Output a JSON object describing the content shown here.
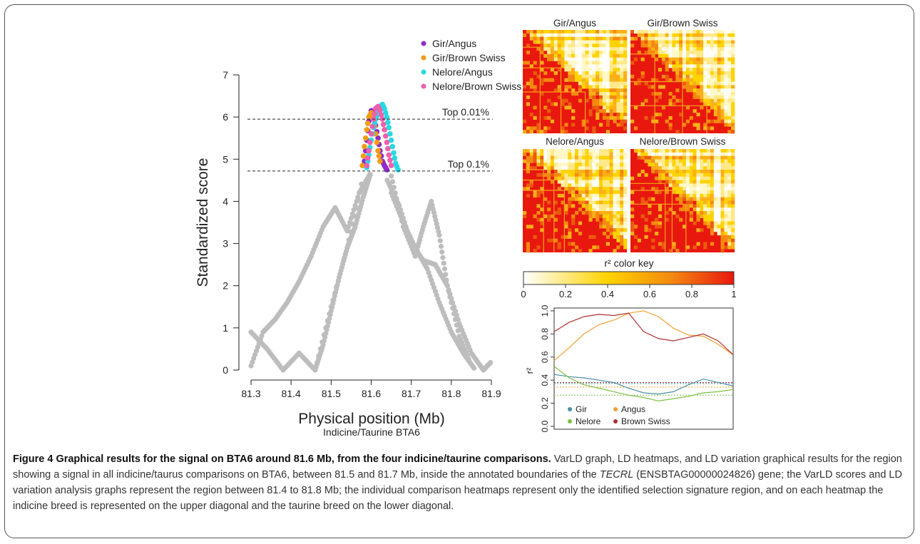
{
  "caption": {
    "figure_label": "Figure 4",
    "title": "Graphical results for the signal on BTA6 around 81.6 Mb, from the four indicine/taurine comparisons.",
    "body_before_gene": " VarLD graph, LD heatmaps, and LD variation graphical results for the region showing a signal in all indicine/taurus comparisons on BTA6, between 81.5 and 81.7 Mb, inside the annotated boundaries of the ",
    "gene": "TECRL",
    "body_after_gene": " (ENSBTAG00000024826) gene; the VarLD scores and LD variation analysis graphs represent the region between 81.4 to 81.8 Mb; the individual comparison heatmaps represent only the identified selection signature region, and on each heatmap the indicine breed is represented on the upper diagonal and the taurine breed on the lower diagonal."
  },
  "chart_data": [
    {
      "type": "scatter",
      "title": "",
      "xlabel": "Physical position (Mb)",
      "xlabel_sub": "Indicine/Taurine BTA6",
      "ylabel": "Standardized score",
      "xlim": [
        81.3,
        81.9
      ],
      "ylim": [
        0,
        7
      ],
      "xticks": [
        "81.3",
        "81.4",
        "81.5",
        "81.6",
        "81.7",
        "81.8",
        "81.9"
      ],
      "yticks": [
        "0",
        "1",
        "2",
        "3",
        "4",
        "5",
        "6",
        "7"
      ],
      "thresholds": [
        {
          "label": "Top 0.01%",
          "y": 5.95
        },
        {
          "label": "Top 0.1%",
          "y": 4.72
        }
      ],
      "legend_position": "top-center",
      "background_color": "#bdbdbd",
      "series": [
        {
          "name": "Gir/Angus",
          "color": "#8e2bc9",
          "x": [
            81.583,
            81.589,
            81.594,
            81.6,
            81.606,
            81.611,
            81.617,
            81.622,
            81.628,
            81.633,
            81.639
          ],
          "y": [
            4.95,
            5.45,
            5.9,
            6.15,
            6.1,
            5.8,
            5.5,
            5.2,
            4.95,
            4.85,
            4.75
          ]
        },
        {
          "name": "Gir/Brown Swiss",
          "color": "#f39c12",
          "x": [
            81.578,
            81.583,
            81.589,
            81.594,
            81.6,
            81.606,
            81.611,
            81.617,
            81.622
          ],
          "y": [
            4.85,
            5.3,
            5.7,
            6.0,
            6.1,
            5.95,
            5.6,
            5.2,
            4.95
          ]
        },
        {
          "name": "Nelore/Angus",
          "color": "#26d9e3",
          "x": [
            81.589,
            81.594,
            81.6,
            81.606,
            81.611,
            81.617,
            81.622,
            81.628,
            81.633,
            81.639,
            81.644,
            81.65,
            81.656,
            81.661,
            81.667
          ],
          "y": [
            4.8,
            5.1,
            5.45,
            5.75,
            5.95,
            6.1,
            6.25,
            6.3,
            6.2,
            6.0,
            5.75,
            5.45,
            5.15,
            4.9,
            4.75
          ]
        },
        {
          "name": "Nelore/Brown Swiss",
          "color": "#ee5fae",
          "x": [
            81.589,
            81.594,
            81.6,
            81.606,
            81.611,
            81.617,
            81.622,
            81.628,
            81.633,
            81.639,
            81.644,
            81.65
          ],
          "y": [
            4.85,
            5.2,
            5.6,
            5.95,
            6.2,
            6.25,
            6.15,
            5.95,
            5.7,
            5.4,
            5.1,
            4.85
          ]
        }
      ],
      "background_series": [
        {
          "x": [
            81.3,
            81.33,
            81.36,
            81.39,
            81.42,
            81.45,
            81.48,
            81.51,
            81.54,
            81.57,
            81.6
          ],
          "y": [
            0.1,
            0.9,
            1.2,
            1.6,
            2.1,
            2.7,
            3.4,
            3.85,
            3.3,
            4.2,
            4.7
          ]
        },
        {
          "x": [
            81.3,
            81.34,
            81.38,
            81.42,
            81.46,
            81.5,
            81.54,
            81.58
          ],
          "y": [
            0.9,
            0.5,
            0.0,
            0.4,
            0.0,
            1.5,
            2.9,
            4.6
          ]
        },
        {
          "x": [
            81.46,
            81.48,
            81.5,
            81.52,
            81.54,
            81.56,
            81.58,
            81.6
          ],
          "y": [
            0.0,
            0.6,
            1.4,
            2.2,
            2.9,
            3.4,
            4.1,
            4.7
          ]
        },
        {
          "x": [
            81.65,
            81.68,
            81.71,
            81.73,
            81.75,
            81.77,
            81.79,
            81.82,
            81.85,
            81.88,
            81.9
          ],
          "y": [
            4.6,
            3.4,
            2.7,
            3.4,
            4.0,
            3.2,
            2.0,
            1.1,
            0.4,
            0.0,
            0.2
          ]
        },
        {
          "x": [
            81.64,
            81.67,
            81.7,
            81.73,
            81.76,
            81.79,
            81.82,
            81.85
          ],
          "y": [
            4.5,
            3.9,
            3.0,
            2.6,
            2.5,
            2.0,
            0.8,
            0.1
          ]
        },
        {
          "x": [
            81.65,
            81.68,
            81.71,
            81.74,
            81.77,
            81.8,
            81.83,
            81.86
          ],
          "y": [
            4.2,
            3.5,
            2.9,
            2.4,
            1.6,
            0.9,
            0.4,
            0.0
          ]
        }
      ]
    },
    {
      "type": "heatmap",
      "panels": [
        "Gir/Angus",
        "Gir/Brown Swiss",
        "Nelore/Angus",
        "Nelore/Brown Swiss"
      ],
      "color_key_title": "r² color key",
      "color_key_ticks": [
        "0",
        "0.2",
        "0.4",
        "0.6",
        "0.8",
        "1"
      ],
      "color_low": "#ffffff",
      "color_mid": "#ffd300",
      "color_high": "#e8180e"
    },
    {
      "type": "line",
      "title": "",
      "ylabel": "r²",
      "ylim": [
        0.0,
        1.0
      ],
      "yticks": [
        "0.0",
        "0.2",
        "0.4",
        "0.6",
        "0.8",
        "1.0"
      ],
      "legend_position": "bottom-left",
      "series": [
        {
          "name": "Gir",
          "color": "#4a90a4",
          "mean": 0.37,
          "y": [
            0.45,
            0.43,
            0.42,
            0.4,
            0.38,
            0.33,
            0.29,
            0.28,
            0.3,
            0.36,
            0.41,
            0.38,
            0.35
          ]
        },
        {
          "name": "Angus",
          "color": "#f0a030",
          "mean": 0.34,
          "y": [
            0.57,
            0.68,
            0.8,
            0.88,
            0.92,
            0.98,
            1.0,
            0.95,
            0.85,
            0.79,
            0.78,
            0.71,
            0.62
          ]
        },
        {
          "name": "Nelore",
          "color": "#7bc143",
          "mean": 0.27,
          "y": [
            0.52,
            0.42,
            0.36,
            0.33,
            0.3,
            0.27,
            0.25,
            0.22,
            0.24,
            0.26,
            0.29,
            0.3,
            0.32
          ]
        },
        {
          "name": "Brown Swiss",
          "color": "#b03030",
          "mean": 0.38,
          "y": [
            0.82,
            0.9,
            0.95,
            0.97,
            0.96,
            0.98,
            0.82,
            0.76,
            0.74,
            0.77,
            0.8,
            0.74,
            0.62
          ]
        }
      ]
    }
  ]
}
